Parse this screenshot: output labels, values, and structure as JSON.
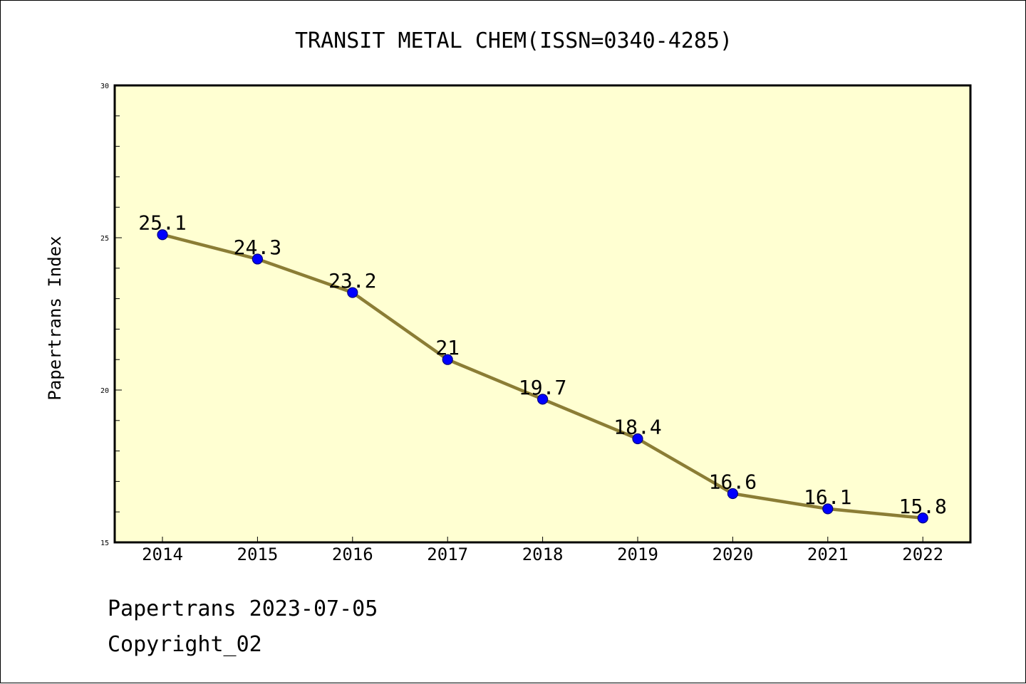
{
  "chart_data": {
    "type": "line",
    "title": "TRANSIT METAL CHEM(ISSN=0340-4285)",
    "xlabel": "",
    "ylabel": "Papertrans Index",
    "categories": [
      "2014",
      "2015",
      "2016",
      "2017",
      "2018",
      "2019",
      "2020",
      "2021",
      "2022"
    ],
    "series": [
      {
        "values": [
          25.1,
          24.3,
          23.2,
          21,
          19.7,
          18.4,
          16.6,
          16.1,
          15.8
        ],
        "labels": [
          "25.1",
          "24.3",
          "23.2",
          "21",
          "19.7",
          "18.4",
          "16.6",
          "16.1",
          "15.8"
        ]
      }
    ],
    "ylim": [
      15,
      30
    ],
    "yticks": [
      "15",
      "20",
      "25",
      "30"
    ],
    "grid": false,
    "legend": "none",
    "colors": {
      "plot_background": "#ffffd2",
      "line": "#8b7d35",
      "marker": "#0000ff",
      "marker_edge": "#000080",
      "axis": "#000000",
      "text": "#000000"
    }
  },
  "footer": {
    "line1": "Papertrans 2023-07-05",
    "line2": "Copyright_02"
  }
}
